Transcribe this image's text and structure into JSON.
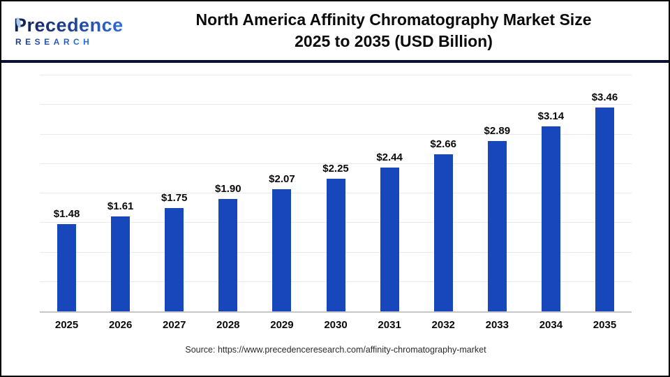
{
  "logo": {
    "name": "Precedence",
    "subname": "RESEARCH"
  },
  "header": {
    "title_line1": "North America Affinity Chromatography Market Size",
    "title_line2": "2025 to 2035 (USD Billion)"
  },
  "chart_data": {
    "type": "bar",
    "title": "North America Affinity Chromatography Market Size 2025 to 2035 (USD Billion)",
    "categories": [
      "2025",
      "2026",
      "2027",
      "2028",
      "2029",
      "2030",
      "2031",
      "2032",
      "2033",
      "2034",
      "2035"
    ],
    "values": [
      1.48,
      1.61,
      1.75,
      1.9,
      2.07,
      2.25,
      2.44,
      2.66,
      2.89,
      3.14,
      3.46
    ],
    "value_labels": [
      "$1.48",
      "$1.61",
      "$1.75",
      "$1.90",
      "$2.07",
      "$2.25",
      "$2.44",
      "$2.66",
      "$2.89",
      "$3.14",
      "$3.46"
    ],
    "unit": "USD Billion",
    "xlabel": "",
    "ylabel": "",
    "ylim": [
      0,
      4.0
    ],
    "gridline_step": 0.5,
    "grid": true,
    "legend_position": "none",
    "bar_color": "#1847bb",
    "gridline_color": "#e9e9e9",
    "axis_line_color": "#c7c7c7"
  },
  "footer": {
    "source": "Source: https://www.precedenceresearch.com/affinity-chromatography-market"
  },
  "colors": {
    "accent_blue": "#1847bb",
    "divider_navy": "#0b1134",
    "logo_dark": "#131f4f",
    "logo_blue": "#2f6fd6",
    "text": "#0a0a0a"
  }
}
